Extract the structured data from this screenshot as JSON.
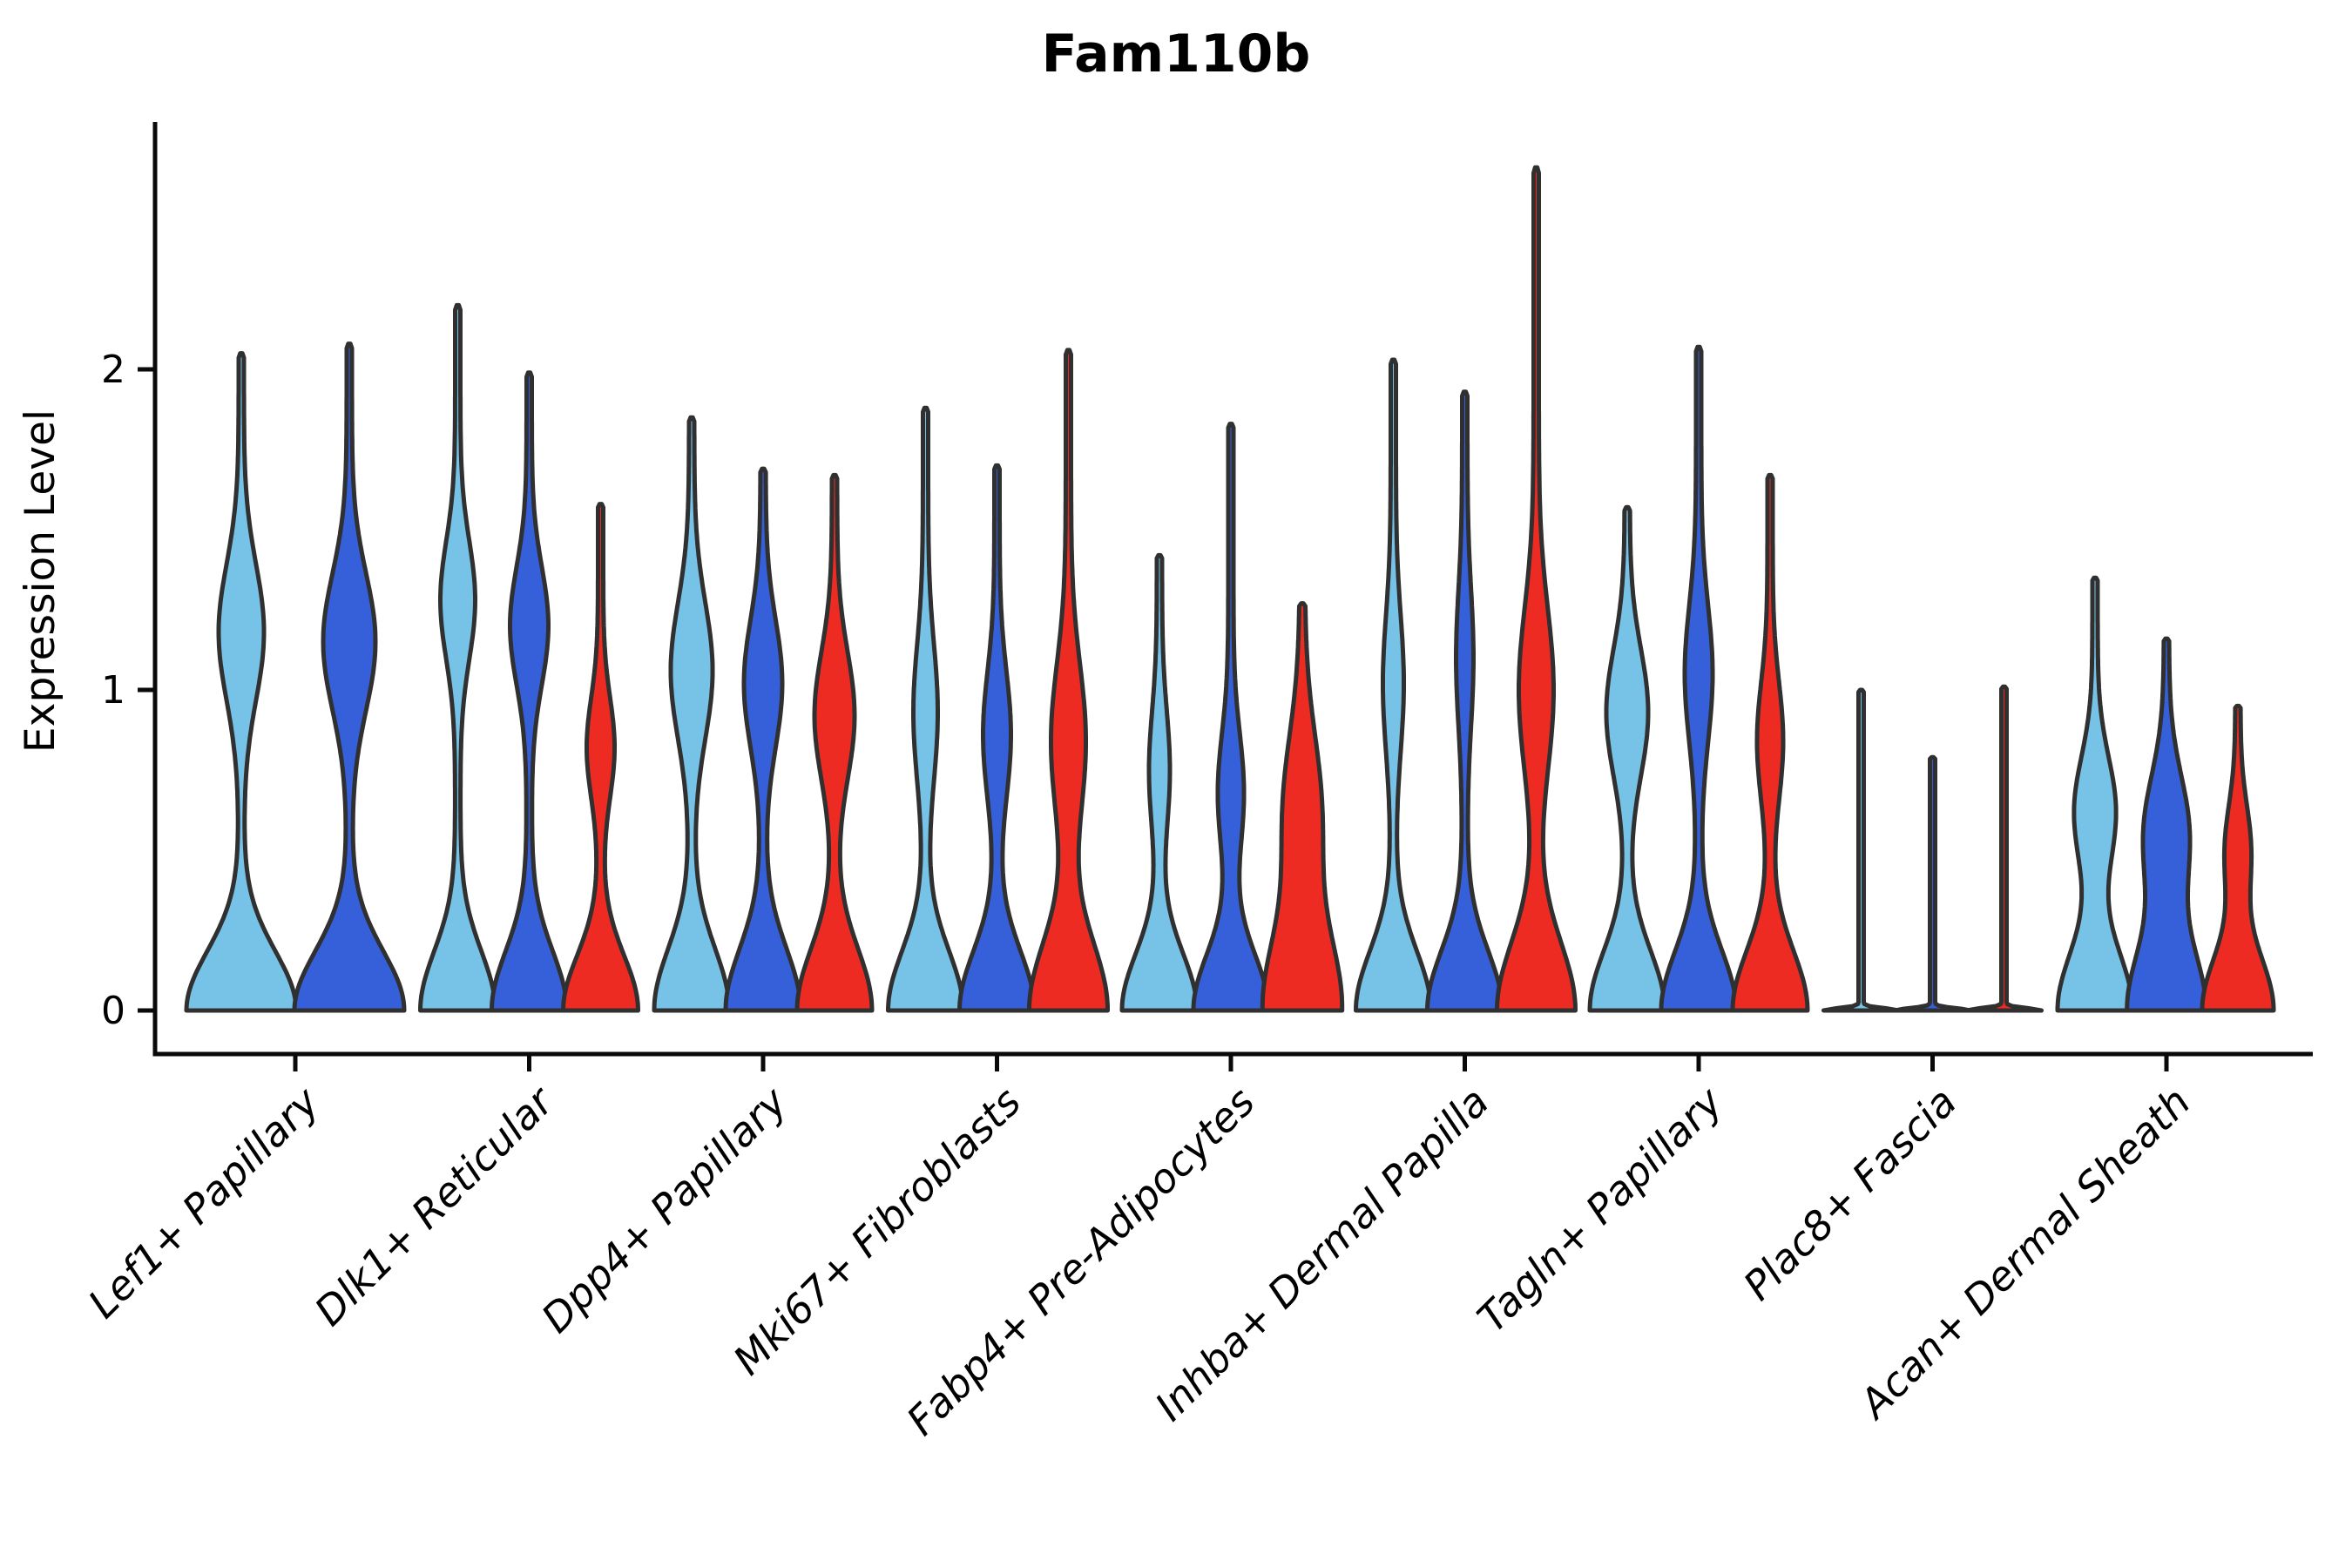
{
  "figure": {
    "title": "Fam110b"
  },
  "axes": {
    "ylabel": "Expression Level",
    "ytick_labels": [
      "0",
      "1",
      "2"
    ]
  },
  "chart_data": {
    "type": "violin",
    "title": "Fam110b",
    "xlabel": "",
    "ylabel": "Expression Level",
    "yticks": [
      0,
      1,
      2
    ],
    "ylim": [
      0,
      2.85
    ],
    "grid": false,
    "legend_position": "none",
    "outline_color": "#303030",
    "split_colors": {
      "light_blue": "#77C3E8",
      "dark_blue": "#3660D9",
      "red": "#EE2B23"
    },
    "categories": [
      "Lef1+ Papillary",
      "Dlk1+ Reticular",
      "Dpp4+ Papillary",
      "Mki67+ Fibroblasts",
      "Fabp4+ Pre-Adipocytes",
      "Inhba+ Dermal Papilla",
      "Tagln+ Papillary",
      "Plac8+ Fascia",
      "Acan+ Dermal Sheath"
    ],
    "groups": [
      {
        "category": "Lef1+ Papillary",
        "violins": [
          {
            "split": "light_blue",
            "max_expression": 2.05,
            "bulge_center": 1.18,
            "bulge_sigma": 0.3,
            "bulge_halfwidth": 23,
            "base_halfwidth": 60,
            "base_sigma": 0.26
          },
          {
            "split": "dark_blue",
            "max_expression": 2.08,
            "bulge_center": 1.15,
            "bulge_sigma": 0.3,
            "bulge_halfwidth": 27,
            "base_halfwidth": 60,
            "base_sigma": 0.26
          }
        ]
      },
      {
        "category": "Dlk1+ Reticular",
        "violins": [
          {
            "split": "light_blue",
            "max_expression": 2.2,
            "bulge_center": 1.28,
            "bulge_sigma": 0.26,
            "bulge_halfwidth": 17,
            "base_halfwidth": 40,
            "base_sigma": 0.26
          },
          {
            "split": "dark_blue",
            "max_expression": 1.99,
            "bulge_center": 1.2,
            "bulge_sigma": 0.26,
            "bulge_halfwidth": 19,
            "base_halfwidth": 40,
            "base_sigma": 0.26
          },
          {
            "split": "red",
            "max_expression": 1.58,
            "bulge_center": 0.82,
            "bulge_sigma": 0.22,
            "bulge_halfwidth": 13,
            "base_halfwidth": 40,
            "base_sigma": 0.24
          }
        ]
      },
      {
        "category": "Dpp4+ Papillary",
        "violins": [
          {
            "split": "light_blue",
            "max_expression": 1.85,
            "bulge_center": 1.06,
            "bulge_sigma": 0.3,
            "bulge_halfwidth": 21,
            "base_halfwidth": 40,
            "base_sigma": 0.27
          },
          {
            "split": "dark_blue",
            "max_expression": 1.69,
            "bulge_center": 1.02,
            "bulge_sigma": 0.28,
            "bulge_halfwidth": 19,
            "base_halfwidth": 40,
            "base_sigma": 0.27
          },
          {
            "split": "red",
            "max_expression": 1.67,
            "bulge_center": 0.92,
            "bulge_sigma": 0.28,
            "bulge_halfwidth": 20,
            "base_halfwidth": 40,
            "base_sigma": 0.27
          }
        ]
      },
      {
        "category": "Mki67+ Fibroblasts",
        "violins": [
          {
            "split": "light_blue",
            "max_expression": 1.88,
            "bulge_center": 0.93,
            "bulge_sigma": 0.3,
            "bulge_halfwidth": 11,
            "base_halfwidth": 40,
            "base_sigma": 0.26
          },
          {
            "split": "dark_blue",
            "max_expression": 1.7,
            "bulge_center": 0.86,
            "bulge_sigma": 0.28,
            "bulge_halfwidth": 13,
            "base_halfwidth": 40,
            "base_sigma": 0.26
          },
          {
            "split": "red",
            "max_expression": 2.06,
            "bulge_center": 0.84,
            "bulge_sigma": 0.34,
            "bulge_halfwidth": 17,
            "base_halfwidth": 42,
            "base_sigma": 0.3
          }
        ]
      },
      {
        "category": "Fabp4+ Pre-Adipocytes",
        "violins": [
          {
            "split": "light_blue",
            "max_expression": 1.42,
            "bulge_center": 0.75,
            "bulge_sigma": 0.26,
            "bulge_halfwidth": 9,
            "base_halfwidth": 40,
            "base_sigma": 0.25
          },
          {
            "split": "dark_blue",
            "max_expression": 1.83,
            "bulge_center": 0.68,
            "bulge_sigma": 0.26,
            "bulge_halfwidth": 12,
            "base_halfwidth": 40,
            "base_sigma": 0.25
          },
          {
            "split": "red",
            "max_expression": 1.27,
            "bulge_center": 0.62,
            "bulge_sigma": 0.34,
            "bulge_halfwidth": 19,
            "base_halfwidth": 42,
            "base_sigma": 0.33
          }
        ]
      },
      {
        "category": "Inhba+ Dermal Papilla",
        "violins": [
          {
            "split": "light_blue",
            "max_expression": 2.03,
            "bulge_center": 1.02,
            "bulge_sigma": 0.3,
            "bulge_halfwidth": 9,
            "base_halfwidth": 40,
            "base_sigma": 0.26
          },
          {
            "split": "dark_blue",
            "max_expression": 1.93,
            "bulge_center": 1.1,
            "bulge_sigma": 0.3,
            "bulge_halfwidth": 7,
            "base_halfwidth": 40,
            "base_sigma": 0.26
          },
          {
            "split": "red",
            "max_expression": 2.63,
            "bulge_center": 1.0,
            "bulge_sigma": 0.36,
            "bulge_halfwidth": 17,
            "base_halfwidth": 42,
            "base_sigma": 0.3
          }
        ]
      },
      {
        "category": "Tagln+ Papillary",
        "violins": [
          {
            "split": "light_blue",
            "max_expression": 1.57,
            "bulge_center": 0.93,
            "bulge_sigma": 0.28,
            "bulge_halfwidth": 21,
            "base_halfwidth": 40,
            "base_sigma": 0.26
          },
          {
            "split": "dark_blue",
            "max_expression": 2.07,
            "bulge_center": 1.05,
            "bulge_sigma": 0.3,
            "bulge_halfwidth": 13,
            "base_halfwidth": 40,
            "base_sigma": 0.26
          },
          {
            "split": "red",
            "max_expression": 1.67,
            "bulge_center": 0.84,
            "bulge_sigma": 0.26,
            "bulge_halfwidth": 12,
            "base_halfwidth": 40,
            "base_sigma": 0.26
          }
        ]
      },
      {
        "category": "Plac8+ Fascia",
        "violins": [
          {
            "split": "light_blue",
            "max_expression": 1.0,
            "bulge_center": 0,
            "bulge_sigma": 0.2,
            "bulge_halfwidth": 0,
            "base_halfwidth": 40,
            "base_sigma": 0.01
          },
          {
            "split": "dark_blue",
            "max_expression": 0.79,
            "bulge_center": 0,
            "bulge_sigma": 0.2,
            "bulge_halfwidth": 0,
            "base_halfwidth": 40,
            "base_sigma": 0.01
          },
          {
            "split": "red",
            "max_expression": 1.01,
            "bulge_center": 0,
            "bulge_sigma": 0.2,
            "bulge_halfwidth": 0,
            "base_halfwidth": 40,
            "base_sigma": 0.01
          }
        ]
      },
      {
        "category": "Acan+ Dermal Sheath",
        "violins": [
          {
            "split": "light_blue",
            "max_expression": 1.35,
            "bulge_center": 0.62,
            "bulge_sigma": 0.24,
            "bulge_halfwidth": 21,
            "base_halfwidth": 40,
            "base_sigma": 0.26
          },
          {
            "split": "dark_blue",
            "max_expression": 1.16,
            "bulge_center": 0.55,
            "bulge_sigma": 0.26,
            "bulge_halfwidth": 23,
            "base_halfwidth": 42,
            "base_sigma": 0.28
          },
          {
            "split": "red",
            "max_expression": 0.95,
            "bulge_center": 0.5,
            "bulge_sigma": 0.2,
            "bulge_halfwidth": 12,
            "base_halfwidth": 38,
            "base_sigma": 0.24
          }
        ]
      }
    ]
  }
}
